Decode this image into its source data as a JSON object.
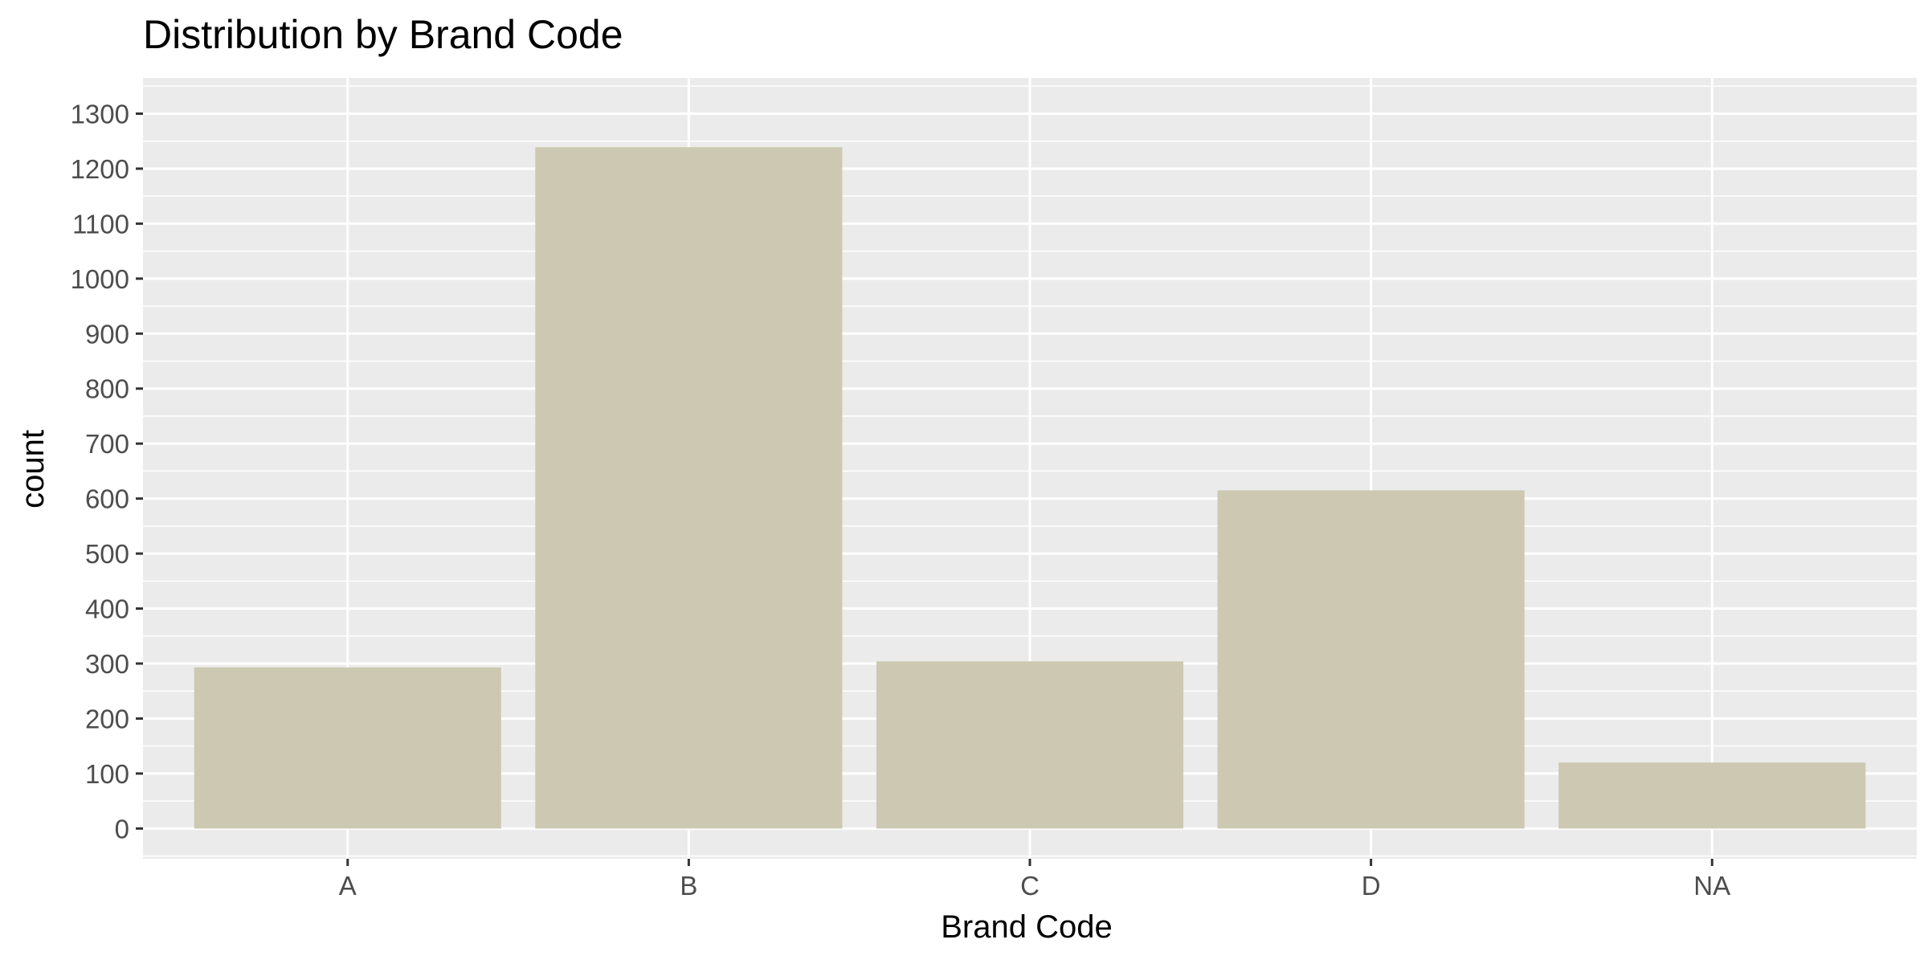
{
  "chart_data": {
    "type": "bar",
    "title": "Distribution by Brand Code",
    "xlabel": "Brand Code",
    "ylabel": "count",
    "categories": [
      "A",
      "B",
      "C",
      "D",
      "NA"
    ],
    "values": [
      293,
      1239,
      304,
      615,
      120
    ],
    "ylim": [
      -55,
      1365
    ],
    "yticks": [
      "0",
      "100",
      "200",
      "300",
      "400",
      "500",
      "600",
      "700",
      "800",
      "900",
      "1000",
      "1100",
      "1200",
      "1300"
    ],
    "grid": true,
    "legend": "none",
    "colors": {
      "bar": "#cdc8b1",
      "panel": "#ebebeb",
      "grid": "#ffffff",
      "tick_text": "#4d4d4d",
      "text": "#000000"
    }
  }
}
